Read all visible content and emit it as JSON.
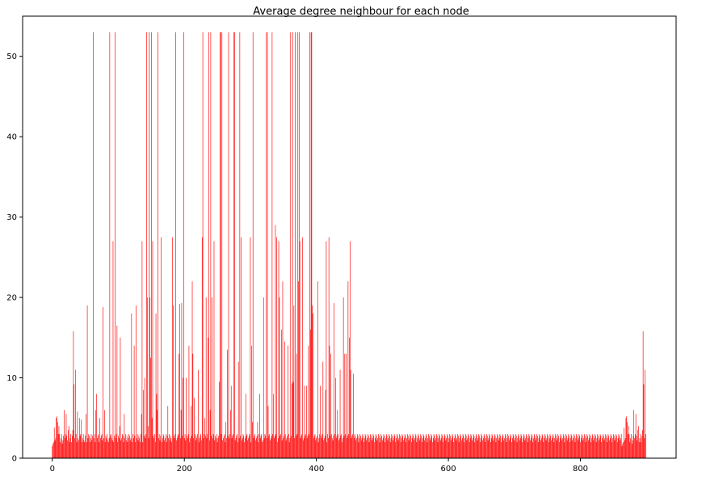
{
  "chart_data": {
    "type": "bar",
    "title": "Average degree neighbour for each node",
    "xlabel": "",
    "ylabel": "",
    "xlim": [
      -45,
      945
    ],
    "ylim": [
      0,
      55
    ],
    "x_ticks": [
      0,
      200,
      400,
      600,
      800
    ],
    "y_ticks": [
      0,
      10,
      20,
      30,
      40,
      50
    ],
    "x_tick_labels": [
      "0",
      "200",
      "400",
      "600",
      "800"
    ],
    "y_tick_labels": [
      "0",
      "10",
      "20",
      "30",
      "40",
      "50"
    ],
    "grid": false,
    "legend": "none",
    "bar_color": "#ff0000",
    "n_nodes": 900,
    "values": [
      1.5,
      1.8,
      2.0,
      3.8,
      2.2,
      2.5,
      5.0,
      5.2,
      4.5,
      3.0,
      4.0,
      3.0,
      2.0,
      2.5,
      3.0,
      1.8,
      2.2,
      2.8,
      6.0,
      2.5,
      3.0,
      5.5,
      2.8,
      2.2,
      3.5,
      4.0,
      2.0,
      2.5,
      3.0,
      2.0,
      2.8,
      3.5,
      15.8,
      9.2,
      2.5,
      11.0,
      3.0,
      2.0,
      5.8,
      2.5,
      2.2,
      5.0,
      2.8,
      3.0,
      4.8,
      2.0,
      2.5,
      3.0,
      2.2,
      2.0,
      2.8,
      5.5,
      2.0,
      19.0,
      2.5,
      3.0,
      2.8,
      2.0,
      2.5,
      3.0,
      2.2,
      2.8,
      53.0,
      2.5,
      3.0,
      2.0,
      6.0,
      8.0,
      2.5,
      2.8,
      3.0,
      2.0,
      5.0,
      2.5,
      2.8,
      3.0,
      2.2,
      18.8,
      2.5,
      6.0,
      2.0,
      2.8,
      2.5,
      3.0,
      2.2,
      2.0,
      2.5,
      53.0,
      2.8,
      3.0,
      2.5,
      2.2,
      27.0,
      2.0,
      2.8,
      53.0,
      2.5,
      3.0,
      16.5,
      2.0,
      2.8,
      2.5,
      4.0,
      15.0,
      2.2,
      2.5,
      3.0,
      2.8,
      2.0,
      5.5,
      2.5,
      3.0,
      2.2,
      2.8,
      2.0,
      2.5,
      3.0,
      2.8,
      2.2,
      2.5,
      18.0,
      2.0,
      3.0,
      2.5,
      14.0,
      2.8,
      2.0,
      19.0,
      2.5,
      3.0,
      2.2,
      2.8,
      2.5,
      2.0,
      3.0,
      5.5,
      27.0,
      2.0,
      8.5,
      2.8,
      10.0,
      2.5,
      3.0,
      53.0,
      20.0,
      4.0,
      2.5,
      53.0,
      20.0,
      12.5,
      53.0,
      5.0,
      27.0,
      2.8,
      2.5,
      3.0,
      2.0,
      18.0,
      8.0,
      6.0,
      53.0,
      2.5,
      3.0,
      2.2,
      2.8,
      27.5,
      2.0,
      2.5,
      3.0,
      2.8,
      2.2,
      2.5,
      3.0,
      2.0,
      2.8,
      6.5,
      2.5,
      3.0,
      2.2,
      2.8,
      2.5,
      2.0,
      27.5,
      19.0,
      2.8,
      2.5,
      3.0,
      53.0,
      2.2,
      2.5,
      2.8,
      3.0,
      13.0,
      19.2,
      2.5,
      6.0,
      19.3,
      2.8,
      10.0,
      53.0,
      2.5,
      3.0,
      2.2,
      10.0,
      2.8,
      2.5,
      3.0,
      14.0,
      2.0,
      2.5,
      6.5,
      2.8,
      22.0,
      13.0,
      2.5,
      7.5,
      3.0,
      2.2,
      2.8,
      2.5,
      3.0,
      11.0,
      2.0,
      2.5,
      2.8,
      3.0,
      2.2,
      27.5,
      53.0,
      2.5,
      3.0,
      5.0,
      2.8,
      20.0,
      2.5,
      3.0,
      15.0,
      53.0,
      2.2,
      6.0,
      53.0,
      2.8,
      20.0,
      2.5,
      3.0,
      27.0,
      2.2,
      2.8,
      2.5,
      3.0,
      2.0,
      2.5,
      2.8,
      9.5,
      53.0,
      53.0,
      3.0,
      53.0,
      2.2,
      2.5,
      2.8,
      3.0,
      2.0,
      4.5,
      2.5,
      13.5,
      2.8,
      53.0,
      2.5,
      3.0,
      6.0,
      9.0,
      2.5,
      2.8,
      3.0,
      53.0,
      53.0,
      2.2,
      2.5,
      2.8,
      3.0,
      2.0,
      12.0,
      2.5,
      53.0,
      2.8,
      27.5,
      2.2,
      2.5,
      3.0,
      2.8,
      2.0,
      2.5,
      8.0,
      2.8,
      3.0,
      2.2,
      2.5,
      2.8,
      3.0,
      27.5,
      2.0,
      14.0,
      4.5,
      53.0,
      2.5,
      2.8,
      3.0,
      2.2,
      2.5,
      2.8,
      4.5,
      2.0,
      3.0,
      8.0,
      2.5,
      2.8,
      3.0,
      2.0,
      2.2,
      20.0,
      2.5,
      3.0,
      2.8,
      53.0,
      2.5,
      53.0,
      6.5,
      2.8,
      3.0,
      2.2,
      2.5,
      2.8,
      53.0,
      3.0,
      8.0,
      2.5,
      2.8,
      29.0,
      3.0,
      27.5,
      2.0,
      2.5,
      27.0,
      20.0,
      2.8,
      3.0,
      16.0,
      2.2,
      22.0,
      2.5,
      2.8,
      14.5,
      3.0,
      2.2,
      2.5,
      2.8,
      14.0,
      3.0,
      2.0,
      2.5,
      53.0,
      2.8,
      9.3,
      53.0,
      9.5,
      19.0,
      2.5,
      53.0,
      2.8,
      13.0,
      3.0,
      53.0,
      22.0,
      53.0,
      27.0,
      2.5,
      2.8,
      3.0,
      27.5,
      2.2,
      2.5,
      9.0,
      2.8,
      3.0,
      9.0,
      2.5,
      2.8,
      14.0,
      3.0,
      53.0,
      16.0,
      53.0,
      53.0,
      19.0,
      18.0,
      2.5,
      2.8,
      3.0,
      2.2,
      2.5,
      2.8,
      22.0,
      2.0,
      2.5,
      3.0,
      9.0,
      2.8,
      2.5,
      3.0,
      12.0,
      2.2,
      2.5,
      2.8,
      8.5,
      27.0,
      2.0,
      3.0,
      2.5,
      27.5,
      14.0,
      2.8,
      13.0,
      3.0,
      2.5,
      2.2,
      2.8,
      19.3,
      3.0,
      10.0,
      2.5,
      2.8,
      6.0,
      3.0,
      2.2,
      2.5,
      11.0,
      2.8,
      3.0,
      2.0,
      2.5,
      20.0,
      2.8,
      13.0,
      3.0,
      13.0,
      2.5,
      2.8,
      22.0,
      3.0,
      15.0,
      27.0,
      11.0,
      2.5,
      2.8,
      3.0,
      10.5,
      2.5,
      3.0,
      2.8,
      2.2,
      2.5,
      3.0,
      2.8,
      2.0,
      2.5,
      3.0,
      2.8,
      2.2,
      2.5,
      3.0,
      2.8,
      2.0,
      2.5,
      3.0,
      2.8,
      2.2,
      2.5,
      3.0,
      2.8,
      2.0,
      2.5,
      3.0,
      2.8,
      2.2,
      2.5,
      3.0,
      2.8,
      2.0,
      2.5,
      3.0,
      2.8,
      2.2,
      2.5,
      3.0,
      2.8,
      2.0,
      2.5,
      3.0,
      2.8,
      2.2,
      2.5,
      3.0,
      2.8,
      2.0,
      2.5,
      3.0,
      2.8,
      2.2,
      2.5,
      3.0,
      2.8,
      2.0,
      2.5,
      3.0,
      2.8,
      2.2,
      2.5,
      3.0,
      2.8,
      2.0,
      2.5,
      3.0,
      2.8,
      2.2,
      2.5,
      3.0,
      2.8,
      2.0,
      2.5,
      3.0,
      2.8,
      2.2,
      2.5,
      3.0,
      2.8,
      2.0,
      2.5,
      3.0,
      2.8,
      2.2,
      2.5,
      3.0,
      2.8,
      2.0,
      2.5,
      3.0,
      2.8,
      2.2,
      2.5,
      3.0,
      2.8,
      2.0,
      2.5,
      3.0,
      2.8,
      2.2,
      2.5,
      3.0,
      2.8,
      2.0,
      2.5,
      3.0,
      2.8,
      2.2,
      2.5,
      3.0,
      2.8,
      2.0,
      2.5,
      3.0,
      2.8,
      2.2,
      2.5,
      3.0,
      2.8,
      2.0,
      2.5,
      3.0,
      2.8,
      2.2,
      2.5,
      3.0,
      2.8,
      2.0,
      2.5,
      3.0,
      2.8,
      2.2,
      2.5,
      3.0,
      2.8,
      2.0,
      2.5,
      3.0,
      2.8,
      2.2,
      2.5,
      3.0,
      2.8,
      2.0,
      2.5,
      3.0,
      2.8,
      2.2,
      2.5,
      3.0,
      2.8,
      2.0,
      2.5,
      3.0,
      2.8,
      2.2,
      2.5,
      3.0,
      2.8,
      2.0,
      2.5,
      3.0,
      2.8,
      2.2,
      2.5,
      3.0,
      2.8,
      2.0,
      2.5,
      3.0,
      2.8,
      2.2,
      2.5,
      3.0,
      2.8,
      2.0,
      2.5,
      3.0,
      2.8,
      2.2,
      2.5,
      3.0,
      2.8,
      2.0,
      2.5,
      3.0,
      2.8,
      2.2,
      2.5,
      3.0,
      2.8,
      2.0,
      2.5,
      3.0,
      2.8,
      2.2,
      2.5,
      3.0,
      2.8,
      2.0,
      2.5,
      3.0,
      2.8,
      2.2,
      2.5,
      3.0,
      2.8,
      2.0,
      2.5,
      3.0,
      2.8,
      2.2,
      2.5,
      3.0,
      2.8,
      2.0,
      2.5,
      3.0,
      2.8,
      2.2,
      2.5,
      3.0,
      2.8,
      2.0,
      2.5,
      3.0,
      2.8,
      2.2,
      2.5,
      3.0,
      2.8,
      2.0,
      2.5,
      3.0,
      2.8,
      2.2,
      2.5,
      3.0,
      2.8,
      2.0,
      2.5,
      3.0,
      2.8,
      2.2,
      2.5,
      3.0,
      2.8,
      2.0,
      2.5,
      3.0,
      2.8,
      2.2,
      2.5,
      3.0,
      2.8,
      2.0,
      2.5,
      3.0,
      2.8,
      2.2,
      2.5,
      3.0,
      2.8,
      2.0,
      2.5,
      3.0,
      2.8,
      2.2,
      2.5,
      3.0,
      2.8,
      2.0,
      2.5,
      3.0,
      2.8,
      2.2,
      2.5,
      3.0,
      2.8,
      2.0,
      2.5,
      3.0,
      2.8,
      2.2,
      2.5,
      3.0,
      2.8,
      2.0,
      2.5,
      3.0,
      2.8,
      2.2,
      2.5,
      3.0,
      2.8,
      2.0,
      2.5,
      3.0,
      2.8,
      2.2,
      2.5,
      3.0,
      2.8,
      2.0,
      2.5,
      3.0,
      2.8,
      2.2,
      2.5,
      3.0,
      2.8,
      2.0,
      2.5,
      3.0,
      2.8,
      2.2,
      2.5,
      3.0,
      2.8,
      2.0,
      2.5,
      3.0,
      2.8,
      2.2,
      2.5,
      3.0,
      2.8,
      2.0,
      2.5,
      3.0,
      2.8,
      2.2,
      2.5,
      3.0,
      2.8,
      2.0,
      2.5,
      3.0,
      2.8,
      2.2,
      2.5,
      3.0,
      2.8,
      2.0,
      2.5,
      3.0,
      2.8,
      2.2,
      2.5,
      3.0,
      2.8,
      2.0,
      2.5,
      3.0,
      2.8,
      2.2,
      2.5,
      3.0,
      2.8,
      2.0,
      2.5,
      3.0,
      2.8,
      2.2,
      2.5,
      3.0,
      2.8,
      2.0,
      2.5,
      3.0,
      2.8,
      2.2,
      2.5,
      3.0,
      2.8,
      2.0,
      2.5,
      3.0,
      2.8,
      2.2,
      2.5,
      3.0,
      2.8,
      2.0,
      2.5,
      3.0,
      2.8,
      2.2,
      2.5,
      3.0,
      2.8,
      2.0,
      2.5,
      3.0,
      2.8,
      2.2,
      2.5,
      3.0,
      2.8,
      2.0,
      2.5,
      3.0,
      2.8,
      2.2,
      2.5,
      3.0
    ]
  }
}
